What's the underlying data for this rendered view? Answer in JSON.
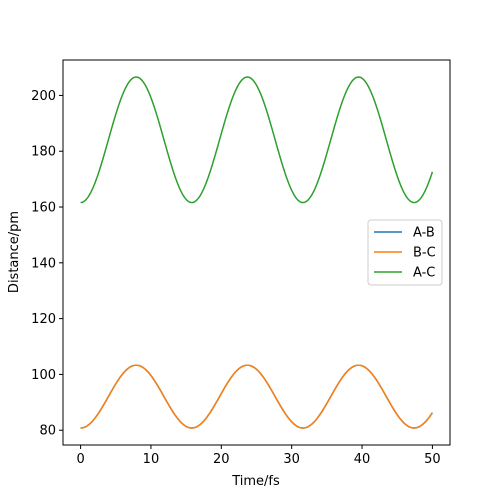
{
  "chart_data": {
    "type": "line",
    "title": "",
    "xlabel": "Time/fs",
    "ylabel": "Distance/pm",
    "xlim": [
      -2.5,
      52.5
    ],
    "ylim": [
      74.7,
      212.7
    ],
    "xticks": [
      0,
      10,
      20,
      30,
      40,
      50
    ],
    "yticks": [
      80,
      100,
      120,
      140,
      160,
      180,
      200
    ],
    "grid": false,
    "legend_position": "center-right",
    "period_fs": 15.8,
    "series": [
      {
        "name": "A-B",
        "color": "#1f77b4",
        "x_range": [
          0,
          50
        ],
        "min": 80.8,
        "max": 103.3,
        "mean": 92.05,
        "start": "min"
      },
      {
        "name": "B-C",
        "color": "#ff7f0e",
        "x_range": [
          0,
          50
        ],
        "min": 80.8,
        "max": 103.3,
        "mean": 92.05,
        "start": "min"
      },
      {
        "name": "A-C",
        "color": "#2ca02c",
        "x_range": [
          0,
          50
        ],
        "min": 161.6,
        "max": 206.6,
        "mean": 184.1,
        "start": "min"
      }
    ]
  }
}
